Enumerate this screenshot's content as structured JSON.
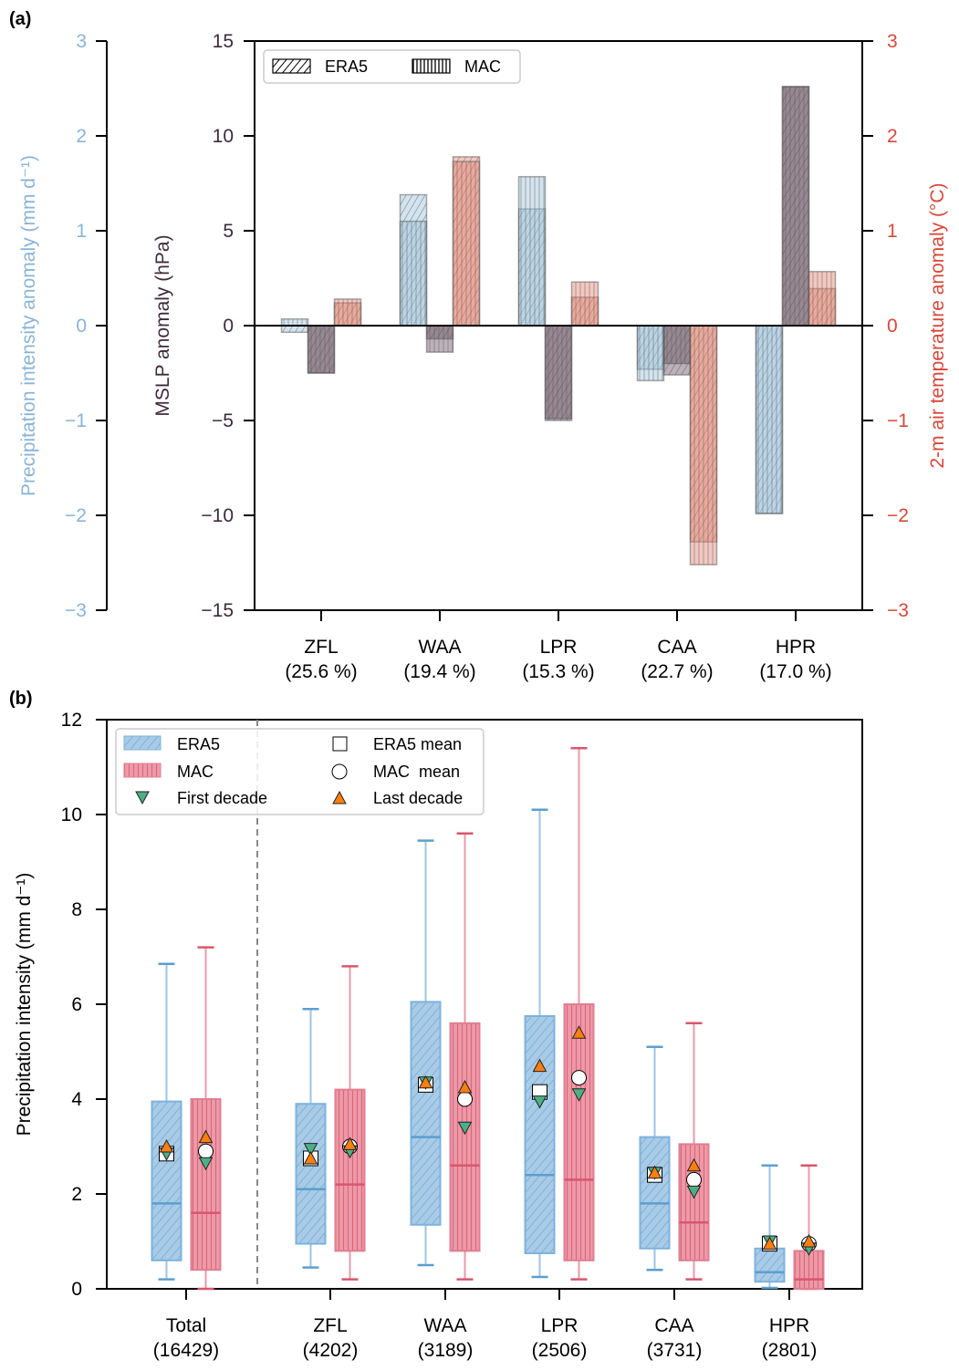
{
  "chart_data": [
    {
      "panel": "(a)",
      "type": "bar",
      "categories": [
        "ZFL",
        "WAA",
        "LPR",
        "CAA",
        "HPR"
      ],
      "category_shares": [
        "(25.6 %)",
        "(19.4 %)",
        "(15.3 %)",
        "(22.7 %)",
        "(17.0 %)"
      ],
      "legend": {
        "placement": "top-left",
        "entries": [
          "ERA5",
          "MAC"
        ]
      },
      "axes": {
        "left_outer": {
          "label": "Precipitation intensity anomaly (mm d⁻¹)",
          "ylim": [
            -3,
            3
          ],
          "ticks": [
            "3",
            "2",
            "1",
            "0",
            "−1",
            "−2",
            "−3"
          ],
          "color": "#8ab4d6"
        },
        "left_inner": {
          "label": "MSLP anomaly (hPa)",
          "ylim": [
            -15,
            15
          ],
          "ticks": [
            "15",
            "10",
            "5",
            "0",
            "−5",
            "−10",
            "−15"
          ],
          "color": "#3d2a3a"
        },
        "right": {
          "label": "2-m air temperature anomaly (°C)",
          "ylim": [
            -3,
            3
          ],
          "ticks": [
            "3",
            "2",
            "1",
            "0",
            "−1",
            "−2",
            "−3"
          ],
          "color": "#d6483a"
        }
      },
      "series": [
        {
          "name": "Precipitation intensity anomaly",
          "axis": "left_outer",
          "color": "#9ec3dc",
          "ERA5": [
            -0.07,
            1.38,
            1.23,
            -0.46,
            -1.98
          ],
          "MAC": [
            0.07,
            1.1,
            1.57,
            -0.58,
            -1.98
          ]
        },
        {
          "name": "MSLP anomaly",
          "axis": "left_inner",
          "color": "#6b5563",
          "ERA5": [
            -2.5,
            -0.7,
            -5.0,
            -2.6,
            12.6
          ],
          "MAC": [
            -2.5,
            -1.4,
            -4.9,
            -2.0,
            12.6
          ]
        },
        {
          "name": "2-m air temperature anomaly",
          "axis": "right",
          "color": "#e38474",
          "ERA5": [
            0.24,
            1.78,
            0.3,
            -2.28,
            0.39
          ],
          "MAC": [
            0.28,
            1.73,
            0.46,
            -2.52,
            0.57
          ]
        }
      ]
    },
    {
      "panel": "(b)",
      "type": "box",
      "ylabel": "Precipitation intensity (mm d⁻¹)",
      "ylim": [
        0,
        12
      ],
      "yticks": [
        "0",
        "2",
        "4",
        "6",
        "8",
        "10",
        "12"
      ],
      "categories": [
        "Total",
        "ZFL",
        "WAA",
        "LPR",
        "CAA",
        "HPR"
      ],
      "category_counts": [
        "(16429)",
        "(4202)",
        "(3189)",
        "(2506)",
        "(3731)",
        "(2801)"
      ],
      "legend": {
        "placement": "top-left",
        "entries": [
          "ERA5",
          "MAC",
          "First decade",
          "ERA5 mean",
          "MAC  mean",
          "Last decade"
        ]
      },
      "colors": {
        "era5": "#5b9fce",
        "mac": "#d9566e",
        "first_decade": "#4daf85",
        "last_decade": "#ff7f0e"
      },
      "series": [
        {
          "name": "ERA5",
          "whisker_low": [
            0.2,
            0.45,
            0.5,
            0.25,
            0.4,
            0.02
          ],
          "q1": [
            0.6,
            0.95,
            1.35,
            0.75,
            0.85,
            0.15
          ],
          "median": [
            1.8,
            2.1,
            3.2,
            2.4,
            1.8,
            0.35
          ],
          "q3": [
            3.95,
            3.9,
            6.05,
            5.75,
            3.2,
            0.85
          ],
          "whisker_high": [
            6.85,
            5.9,
            9.45,
            10.1,
            5.1,
            2.6
          ],
          "mean": [
            2.85,
            2.75,
            4.3,
            4.15,
            2.4,
            0.95
          ],
          "first_decade": [
            2.85,
            2.95,
            4.35,
            3.95,
            2.45,
            1.0
          ],
          "last_decade": [
            3.0,
            2.75,
            4.35,
            4.7,
            2.45,
            0.95
          ]
        },
        {
          "name": "MAC",
          "whisker_low": [
            0.0,
            0.2,
            0.2,
            0.2,
            0.2,
            0.0
          ],
          "q1": [
            0.4,
            0.8,
            0.8,
            0.6,
            0.6,
            0.0
          ],
          "median": [
            1.6,
            2.2,
            2.6,
            2.3,
            1.4,
            0.2
          ],
          "q3": [
            4.0,
            4.2,
            5.6,
            6.0,
            3.05,
            0.8
          ],
          "whisker_high": [
            7.2,
            6.8,
            9.6,
            11.4,
            5.6,
            2.6
          ],
          "mean": [
            2.9,
            3.0,
            4.0,
            4.45,
            2.3,
            0.95
          ],
          "first_decade": [
            2.65,
            2.9,
            3.4,
            4.1,
            2.05,
            0.85
          ],
          "last_decade": [
            3.2,
            3.05,
            4.25,
            5.4,
            2.6,
            1.0
          ]
        }
      ]
    }
  ]
}
